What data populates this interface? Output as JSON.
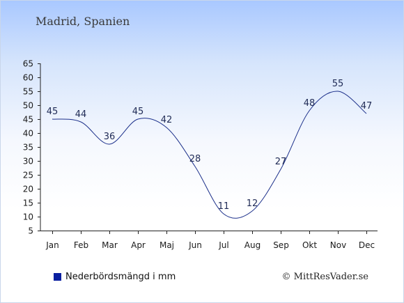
{
  "header": {
    "location": "Madrid, Spanien"
  },
  "footer": {
    "copyright": "© MittResVader.se"
  },
  "colors": {
    "line": "#1b2f8a",
    "swatch": "#0a1fa0",
    "axis": "#222222"
  },
  "chart_data": {
    "type": "line",
    "title": "Madrid, Spanien",
    "categories": [
      "Jan",
      "Feb",
      "Mar",
      "Apr",
      "Maj",
      "Jun",
      "Jul",
      "Aug",
      "Sep",
      "Okt",
      "Nov",
      "Dec"
    ],
    "series": [
      {
        "name": "Nederbördsmängd i mm",
        "values": [
          45,
          44,
          36,
          45,
          42,
          28,
          11,
          12,
          27,
          48,
          55,
          47
        ]
      }
    ],
    "ylim": [
      5,
      65
    ],
    "yticks": [
      5,
      10,
      15,
      20,
      25,
      30,
      35,
      40,
      45,
      50,
      55,
      60,
      65
    ],
    "grid": false,
    "legend": "bottom-left"
  }
}
